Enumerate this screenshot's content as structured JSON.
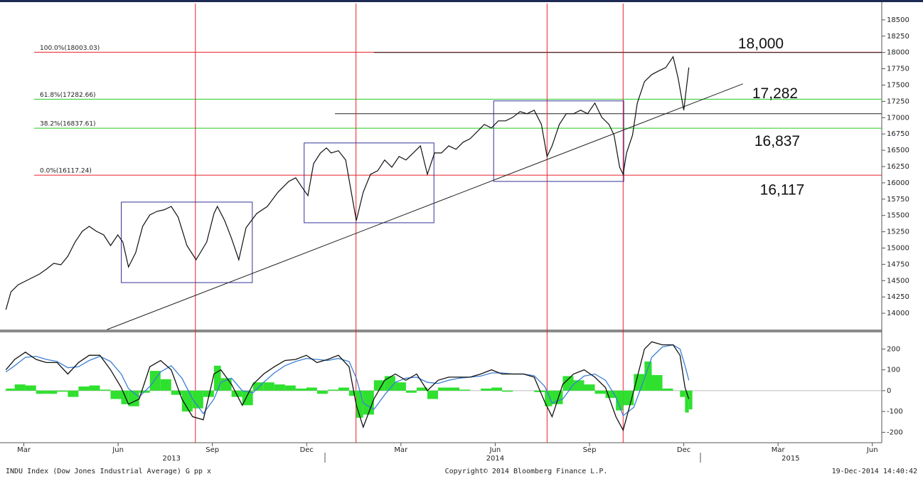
{
  "chart_data": [
    {
      "type": "line",
      "xlim": [
        1.4,
        29.3
      ],
      "ylim": [
        13750,
        18750
      ],
      "yticks": [
        14000,
        14250,
        14500,
        14750,
        15000,
        15250,
        15500,
        15750,
        16000,
        16250,
        16500,
        16750,
        17000,
        17250,
        17500,
        17750,
        18000,
        18250,
        18500
      ],
      "series": [
        {
          "color": "#111111",
          "x": [
            1.43,
            1.59,
            1.82,
            2.05,
            2.27,
            2.5,
            2.72,
            2.95,
            3.18,
            3.4,
            3.63,
            3.86,
            4.08,
            4.31,
            4.54,
            4.76,
            4.99,
            5.15,
            5.33,
            5.56,
            5.78,
            6.01,
            6.24,
            6.46,
            6.69,
            6.91,
            7.19,
            7.48,
            7.82,
            8.05,
            8.16,
            8.39,
            8.61,
            8.84,
            9.07,
            9.41,
            9.75,
            10.09,
            10.43,
            10.65,
            10.88,
            11.04,
            11.22,
            11.44,
            11.63,
            11.78,
            12.01,
            12.24,
            12.4,
            12.58,
            12.8,
            13.03,
            13.26,
            13.48,
            13.71,
            13.94,
            14.16,
            14.39,
            14.62,
            14.84,
            15.07,
            15.29,
            15.52,
            15.75,
            15.98,
            16.2,
            16.43,
            16.65,
            16.88,
            17.1,
            17.33,
            17.56,
            17.79,
            18.01,
            18.24,
            18.47,
            18.65,
            18.81,
            19.04,
            19.26,
            19.49,
            19.72,
            19.94,
            20.17,
            20.39,
            20.62,
            20.78,
            20.96,
            21.07,
            21.18,
            21.37,
            21.52,
            21.75,
            21.98,
            22.2,
            22.43,
            22.66,
            22.82,
            23.0,
            23.16
          ],
          "values": [
            14055,
            14328,
            14437,
            14492,
            14546,
            14601,
            14677,
            14765,
            14743,
            14874,
            15093,
            15257,
            15333,
            15257,
            15202,
            15038,
            15202,
            15093,
            14710,
            14929,
            15333,
            15508,
            15563,
            15585,
            15639,
            15475,
            15038,
            14820,
            15093,
            15530,
            15639,
            15421,
            15148,
            14820,
            15311,
            15530,
            15639,
            15858,
            16022,
            16077,
            15913,
            15803,
            16295,
            16459,
            16536,
            16459,
            16492,
            16350,
            15913,
            15421,
            15858,
            16131,
            16186,
            16350,
            16240,
            16404,
            16350,
            16459,
            16568,
            16131,
            16459,
            16459,
            16568,
            16514,
            16623,
            16677,
            16787,
            16896,
            16842,
            16951,
            16951,
            17005,
            17093,
            17060,
            17115,
            16896,
            16404,
            16568,
            16896,
            17060,
            17060,
            17115,
            17060,
            17224,
            17005,
            16896,
            16732,
            16240,
            16131,
            16459,
            16732,
            17224,
            17552,
            17661,
            17716,
            17770,
            17934,
            17607,
            17115,
            17770
          ]
        }
      ],
      "fib_levels": [
        {
          "label": "100.0%(18003.03)",
          "value": 18003.03,
          "color": "#e8202a"
        },
        {
          "label": "61.8%(17282.66)",
          "value": 17282.66,
          "color": "#22cc22"
        },
        {
          "label": "38.2%(16837.61)",
          "value": 16837.61,
          "color": "#22cc22"
        },
        {
          "label": "0.0%(16117.24)",
          "value": 16117.24,
          "color": "#e8202a"
        }
      ],
      "level_labels": [
        {
          "label": "18,000",
          "value": 18000
        },
        {
          "label": "17,282",
          "value": 17282
        },
        {
          "label": "16,837",
          "value": 16837
        },
        {
          "label": "16,117",
          "value": 16117
        }
      ],
      "hlines": [
        {
          "value": 18000,
          "x_start": 13.14
        },
        {
          "value": 17060,
          "x_start": 11.9
        }
      ],
      "trendline": {
        "x": [
          4.65,
          24.88
        ],
        "values": [
          13750,
          17519
        ]
      },
      "vlines": [
        7.46,
        12.57,
        18.65,
        21.07
      ],
      "boxes": [
        {
          "x": [
            5.1,
            9.27
          ],
          "values": [
            14470,
            15705
          ]
        },
        {
          "x": [
            10.92,
            15.05
          ],
          "values": [
            15388,
            16612
          ]
        },
        {
          "x": [
            16.95,
            21.09
          ],
          "values": [
            16022,
            17257
          ]
        }
      ]
    },
    {
      "type": "line",
      "xlim": [
        1.4,
        29.3
      ],
      "ylim": [
        -250,
        280
      ],
      "yticks": [
        -200,
        -100,
        0,
        100,
        200
      ],
      "xticks": [
        {
          "value": 2,
          "label": "Mar"
        },
        {
          "value": 5,
          "label": "Jun"
        },
        {
          "value": 8,
          "label": "Sep"
        },
        {
          "value": 11,
          "label": "Dec"
        },
        {
          "value": 14,
          "label": "Mar"
        },
        {
          "value": 17,
          "label": "Jun"
        },
        {
          "value": 20,
          "label": "Sep"
        },
        {
          "value": 23,
          "label": "Dec"
        },
        {
          "value": 26,
          "label": "Mar"
        },
        {
          "value": 29,
          "label": "Jun"
        }
      ],
      "year_ticks": [
        {
          "value": 6.7,
          "label": "2013"
        },
        {
          "value": 17,
          "label": "2014"
        },
        {
          "value": 26.4,
          "label": "2015"
        }
      ],
      "x": [
        1.43,
        1.71,
        2.05,
        2.39,
        2.72,
        3.06,
        3.4,
        3.74,
        4.08,
        4.42,
        4.76,
        5.1,
        5.33,
        5.67,
        6.01,
        6.35,
        6.69,
        7.03,
        7.37,
        7.71,
        8.05,
        8.27,
        8.61,
        8.95,
        9.29,
        9.63,
        9.97,
        10.31,
        10.65,
        10.99,
        11.33,
        11.67,
        12.01,
        12.35,
        12.58,
        12.8,
        13.14,
        13.48,
        13.82,
        14.16,
        14.5,
        14.84,
        15.18,
        15.52,
        15.86,
        16.2,
        16.54,
        16.88,
        17.22,
        17.56,
        17.9,
        18.24,
        18.58,
        18.81,
        19.15,
        19.49,
        19.83,
        20.17,
        20.51,
        20.84,
        21.07,
        21.41,
        21.75,
        21.98,
        22.32,
        22.66,
        22.88,
        23.04,
        23.16
      ],
      "series": [
        {
          "kind": "bar",
          "color": "#2fe02f",
          "values": [
            10,
            30,
            25,
            -15,
            -15,
            -5,
            -30,
            20,
            25,
            5,
            -40,
            -65,
            -75,
            -10,
            95,
            55,
            -20,
            -100,
            -85,
            -30,
            120,
            60,
            -30,
            -70,
            40,
            40,
            30,
            25,
            10,
            15,
            -15,
            5,
            15,
            -25,
            -130,
            -115,
            50,
            70,
            40,
            -10,
            15,
            -40,
            15,
            15,
            5,
            0,
            10,
            15,
            -5,
            0,
            0,
            -7,
            -75,
            -65,
            70,
            50,
            30,
            -15,
            -35,
            -95,
            -70,
            80,
            140,
            75,
            10,
            0,
            -30,
            -105,
            -90
          ]
        },
        {
          "kind": "line",
          "color": "#3a7fd5",
          "values": [
            90,
            120,
            160,
            165,
            150,
            140,
            110,
            115,
            145,
            165,
            140,
            80,
            10,
            -30,
            20,
            90,
            120,
            60,
            -40,
            -110,
            -40,
            40,
            60,
            0,
            -10,
            40,
            85,
            120,
            140,
            155,
            150,
            145,
            155,
            140,
            60,
            -60,
            -90,
            -20,
            40,
            60,
            65,
            40,
            35,
            50,
            60,
            65,
            70,
            85,
            85,
            80,
            80,
            72,
            20,
            -60,
            -40,
            30,
            70,
            80,
            50,
            -30,
            -120,
            -80,
            60,
            160,
            210,
            220,
            200,
            120,
            50
          ]
        },
        {
          "kind": "line",
          "color": "#111111",
          "values": [
            100,
            150,
            185,
            150,
            135,
            135,
            80,
            135,
            170,
            170,
            100,
            15,
            -65,
            -40,
            115,
            145,
            100,
            -40,
            -125,
            -140,
            80,
            100,
            30,
            -70,
            30,
            80,
            115,
            145,
            150,
            170,
            135,
            150,
            170,
            115,
            -70,
            -175,
            -40,
            50,
            80,
            50,
            80,
            0,
            50,
            65,
            65,
            65,
            80,
            100,
            80,
            80,
            80,
            65,
            -55,
            -125,
            30,
            80,
            100,
            65,
            15,
            -125,
            -190,
            0,
            200,
            235,
            220,
            220,
            170,
            15,
            -40
          ]
        }
      ]
    }
  ],
  "footer": {
    "left": "INDU Index (Dow Jones Industrial Average) G pp x",
    "center": "Copyright© 2014 Bloomberg Finance L.P.",
    "right": "19-Dec-2014 14:40:42"
  }
}
